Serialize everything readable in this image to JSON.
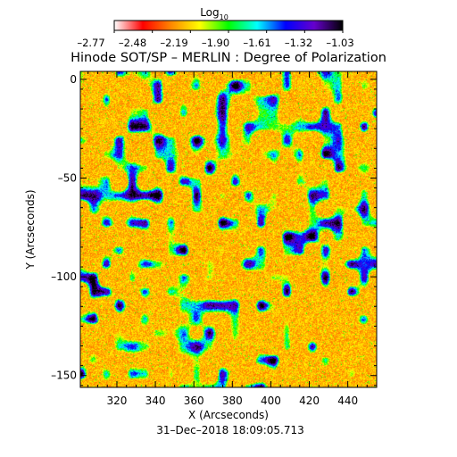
{
  "chart_data": {
    "type": "heatmap",
    "title": "Hinode SOT/SP – MERLIN : Degree of Polarization",
    "xlabel": "X (Arcseconds)",
    "ylabel": "Y (Arcseconds)",
    "timestamp": "31–Dec–2018 18:09:05.713",
    "colorbar": {
      "label_base": "Log",
      "label_sub": "10",
      "min": -2.77,
      "max": -1.03,
      "tick_labels": [
        "–2.77",
        "–2.48",
        "–2.19",
        "–1.90",
        "–1.61",
        "–1.32",
        "–1.03"
      ],
      "gradient": [
        "#ffffff",
        "#ff0000",
        "#ff8800",
        "#ffff00",
        "#00ff00",
        "#00ffff",
        "#0000ff",
        "#6600cc",
        "#000000"
      ]
    },
    "xlim": [
      301,
      455
    ],
    "ylim": [
      -156,
      4
    ],
    "x_ticks": [
      320,
      340,
      360,
      380,
      400,
      420,
      440
    ],
    "x_tick_labels": [
      "320",
      "340",
      "360",
      "380",
      "400",
      "420",
      "440"
    ],
    "y_ticks": [
      0,
      -50,
      -100,
      -150
    ],
    "y_tick_labels": [
      "0",
      "–50",
      "–100",
      "–150"
    ],
    "field_description_colors": {
      "background_low": "#f26a12",
      "mid": "#f6c200",
      "high_green": "#2ecc40",
      "peak_blue": "#1a20c8"
    }
  }
}
